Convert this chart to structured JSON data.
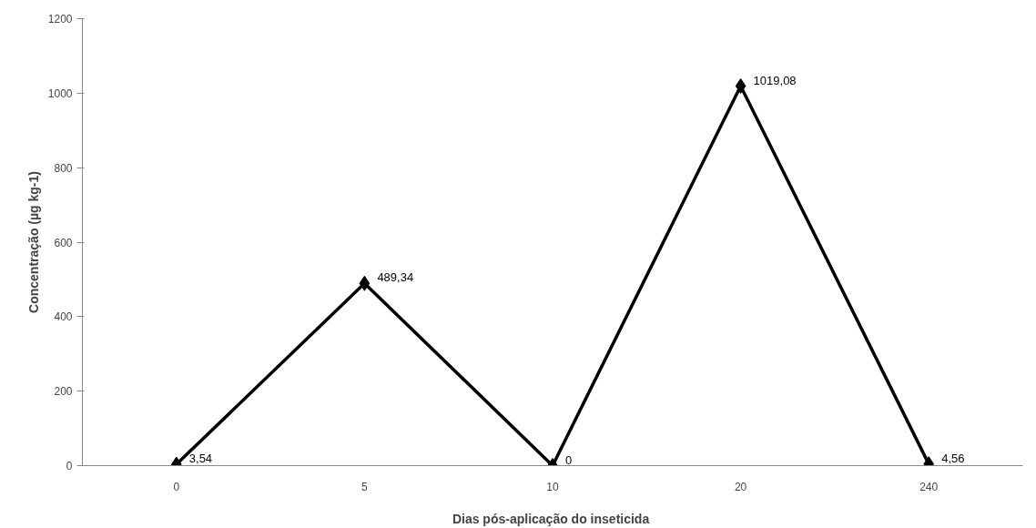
{
  "chart_data": {
    "type": "line",
    "xlabel": "Dias pós-aplicação  do inseticida",
    "ylabel": "Concentração (µg kg-1)",
    "categories": [
      "0",
      "5",
      "10",
      "20",
      "240"
    ],
    "series": [
      {
        "color": "#000000",
        "values": [
          3.54,
          489.34,
          0,
          1019.08,
          4.56
        ],
        "value_labels": [
          "3,54",
          "489,34",
          "0",
          "1019,08",
          "4,56"
        ]
      }
    ],
    "ylim": [
      0,
      1200
    ],
    "yticks": [
      0,
      200,
      400,
      600,
      800,
      1000,
      1200
    ],
    "grid": false,
    "marker": "diamond",
    "line_style": "solid"
  }
}
